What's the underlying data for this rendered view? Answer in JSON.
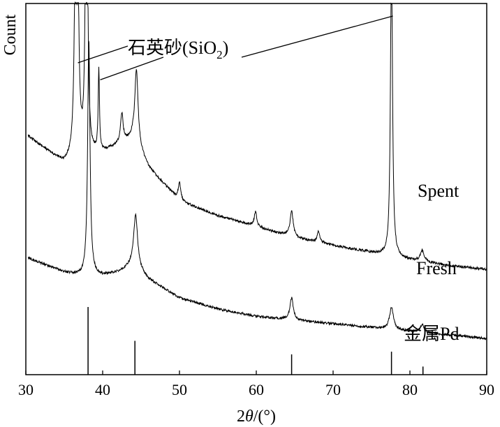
{
  "chart_data": {
    "type": "line",
    "xlabel": "2θ/(°)",
    "ylabel": "Count",
    "xlim": [
      30,
      90
    ],
    "x_ticks": [
      30,
      40,
      50,
      60,
      70,
      80,
      90
    ],
    "grid": false,
    "series": [
      {
        "name": "Spent",
        "baseline": [
          [
            30,
            0.75
          ],
          [
            35,
            0.67
          ],
          [
            37,
            0.68
          ],
          [
            40,
            0.7
          ],
          [
            42,
            0.72
          ],
          [
            44,
            0.74
          ],
          [
            46,
            0.66
          ],
          [
            50,
            0.57
          ],
          [
            55,
            0.53
          ],
          [
            60,
            0.5
          ],
          [
            65,
            0.47
          ],
          [
            70,
            0.45
          ],
          [
            75,
            0.43
          ],
          [
            80,
            0.41
          ],
          [
            85,
            0.395
          ],
          [
            90,
            0.385
          ]
        ],
        "peaks": [
          [
            36.6,
            2.6,
            0.12
          ],
          [
            37.9,
            1.07,
            0.15
          ],
          [
            39.5,
            0.22,
            0.1
          ],
          [
            42.5,
            0.08,
            0.2
          ],
          [
            44.4,
            0.2,
            0.25
          ],
          [
            50,
            0.05,
            0.2
          ],
          [
            59.9,
            0.04,
            0.2
          ],
          [
            64.6,
            0.07,
            0.25
          ],
          [
            68.1,
            0.03,
            0.2
          ],
          [
            77.6,
            0.87,
            0.15
          ],
          [
            81.6,
            0.03,
            0.3
          ]
        ]
      },
      {
        "name": "Fresh",
        "baseline": [
          [
            30,
            0.38
          ],
          [
            35,
            0.34
          ],
          [
            37,
            0.33
          ],
          [
            40,
            0.33
          ],
          [
            42,
            0.34
          ],
          [
            44,
            0.36
          ],
          [
            46,
            0.32
          ],
          [
            50,
            0.27
          ],
          [
            55,
            0.24
          ],
          [
            60,
            0.22
          ],
          [
            65,
            0.21
          ],
          [
            70,
            0.2
          ],
          [
            75,
            0.19
          ],
          [
            80,
            0.18
          ],
          [
            85,
            0.17
          ],
          [
            90,
            0.16
          ]
        ],
        "peaks": [
          [
            38.2,
            0.64,
            0.18
          ],
          [
            44.3,
            0.14,
            0.3
          ],
          [
            64.6,
            0.06,
            0.25
          ],
          [
            77.6,
            0.06,
            0.3
          ],
          [
            81.6,
            0.02,
            0.3
          ]
        ]
      }
    ],
    "reference": {
      "name": "金属Pd",
      "x": [
        38.1,
        44.2,
        64.6,
        77.6,
        81.7
      ],
      "relative_intensity": [
        100,
        50,
        30,
        34,
        12
      ]
    },
    "annotation": {
      "label": "石英砂(SiO",
      "subscript": "2",
      "closing": ")",
      "points_to_x": [
        36.6,
        39.5,
        77.6
      ]
    }
  }
}
